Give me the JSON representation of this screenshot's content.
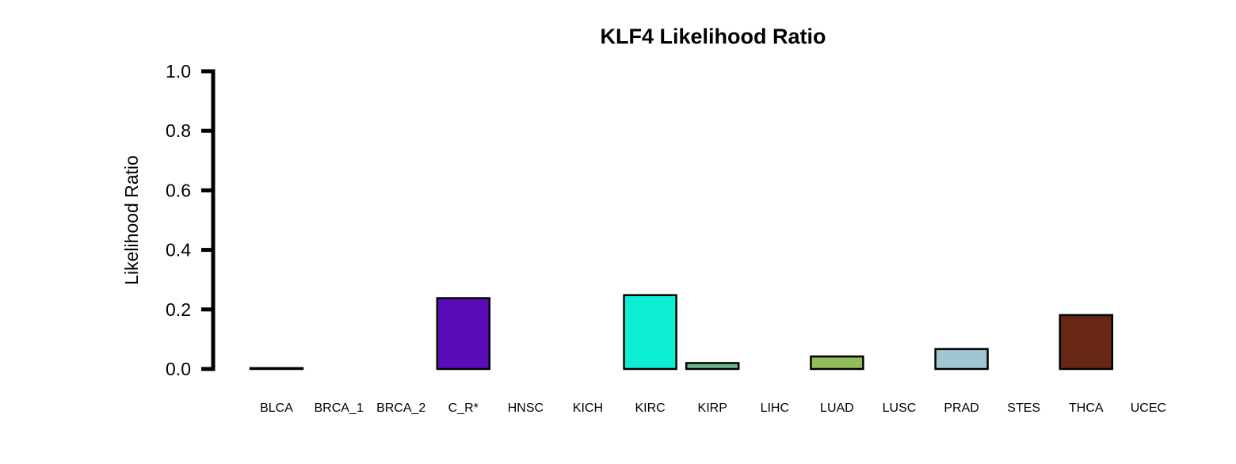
{
  "chart_data": {
    "type": "bar",
    "title": "KLF4 Likelihood Ratio",
    "xlabel": "",
    "ylabel": "Likelihood Ratio",
    "ylim": [
      0,
      1.0
    ],
    "yticks": [
      "0.0",
      "0.2",
      "0.4",
      "0.6",
      "0.8",
      "1.0"
    ],
    "ytick_values": [
      0,
      0.2,
      0.4,
      0.6,
      0.8,
      1.0
    ],
    "grid": false,
    "categories": [
      "BLCA",
      "BRCA_1",
      "BRCA_2",
      "C_R*",
      "HNSC",
      "KICH",
      "KIRC",
      "KIRP",
      "LIHC",
      "LUAD",
      "LUSC",
      "PRAD",
      "STES",
      "THCA",
      "UCEC"
    ],
    "values": [
      0.003,
      0.0,
      0.0,
      0.238,
      0.0,
      0.0,
      0.248,
      0.02,
      0.0,
      0.042,
      0.0,
      0.067,
      0.0,
      0.181,
      0.0
    ],
    "colors": [
      "#000000",
      "#000000",
      "#000000",
      "#5B0CB8",
      "#000000",
      "#000000",
      "#0DEED2",
      "#6BB890",
      "#000000",
      "#93BC5B",
      "#000000",
      "#A0C6D4",
      "#000000",
      "#682714",
      "#000000"
    ]
  }
}
